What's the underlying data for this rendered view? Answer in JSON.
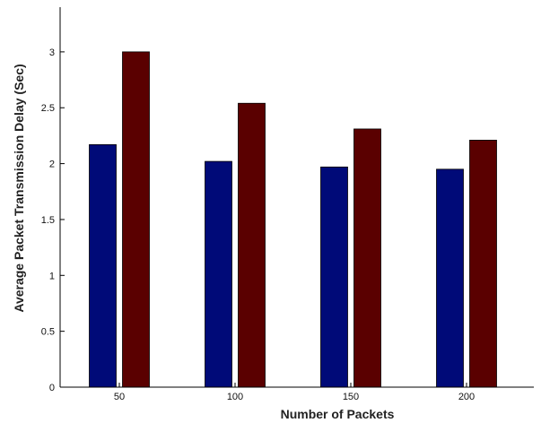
{
  "chart_data": {
    "type": "bar",
    "title": "",
    "xlabel": "Number of Packets",
    "ylabel": "Average Packet Transmission Delay (Sec)",
    "categories": [
      "50",
      "100",
      "150",
      "200"
    ],
    "series": [
      {
        "values": [
          2.17,
          2.02,
          1.97,
          1.95
        ],
        "color": "#000a78"
      },
      {
        "values": [
          3.0,
          2.54,
          2.31,
          2.21
        ],
        "color": "#5a0000"
      }
    ],
    "ylim": [
      0,
      3.4
    ],
    "yticks": [
      0,
      0.5,
      1,
      1.5,
      2,
      2.5,
      3
    ],
    "ytick_labels": [
      "0",
      "0.5",
      "1",
      "1.5",
      "2",
      "2.5",
      "3"
    ],
    "grid": false,
    "legend": "none"
  }
}
